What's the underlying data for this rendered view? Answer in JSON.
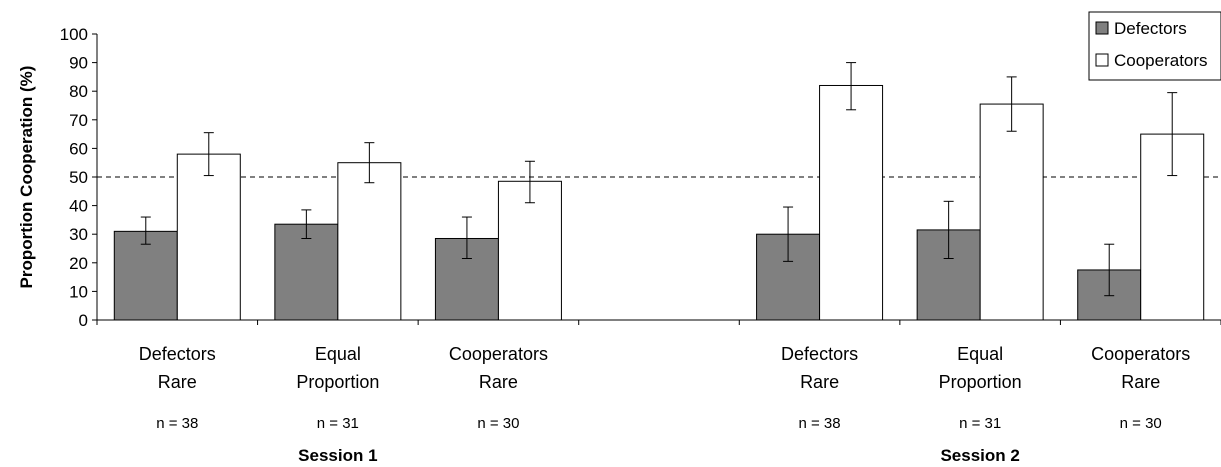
{
  "chart_data": {
    "type": "bar",
    "ylabel": "Proportion Cooperation (%)",
    "ylim": [
      0,
      100
    ],
    "yticks": [
      0,
      10,
      20,
      30,
      40,
      50,
      60,
      70,
      80,
      90,
      100
    ],
    "reference_line": 50,
    "categories": [
      {
        "line1": "Defectors",
        "line2": "Rare",
        "n": "n = 38",
        "session": "Session 1"
      },
      {
        "line1": "Equal",
        "line2": "Proportion",
        "n": "n = 31",
        "session": "Session 1"
      },
      {
        "line1": "Cooperators",
        "line2": "Rare",
        "n": "n = 30",
        "session": "Session 1"
      },
      {
        "line1": "Defectors",
        "line2": "Rare",
        "n": "n = 38",
        "session": "Session 2"
      },
      {
        "line1": "Equal",
        "line2": "Proportion",
        "n": "n = 31",
        "session": "Session 2"
      },
      {
        "line1": "Cooperators",
        "line2": "Rare",
        "n": "n = 30",
        "session": "Session 2"
      }
    ],
    "sessions": [
      "Session 1",
      "Session 2"
    ],
    "series": [
      {
        "name": "Defectors",
        "color": "#808080",
        "values": [
          31,
          33.5,
          28.5,
          30,
          31.5,
          17.5
        ],
        "err_low": [
          26.5,
          28.5,
          21.5,
          20.5,
          21.5,
          8.5
        ],
        "err_high": [
          36,
          38.5,
          36,
          39.5,
          41.5,
          26.5
        ]
      },
      {
        "name": "Cooperators",
        "color": "#ffffff",
        "values": [
          58,
          55,
          48.5,
          82,
          75.5,
          65
        ],
        "err_low": [
          50.5,
          48,
          41,
          73.5,
          66,
          50.5
        ],
        "err_high": [
          65.5,
          62,
          55.5,
          90,
          85,
          79.5
        ]
      }
    ],
    "legend_position": "top-right",
    "grid": false
  }
}
